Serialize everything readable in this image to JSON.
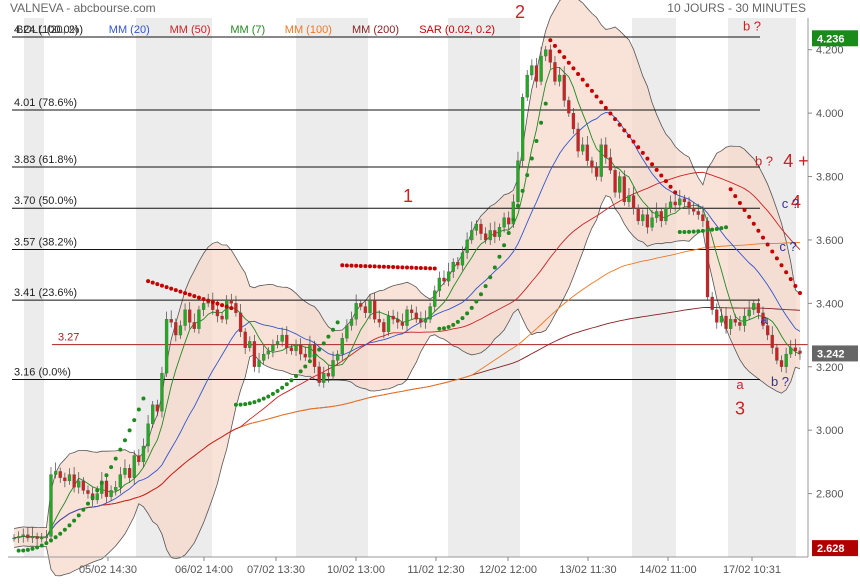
{
  "header": {
    "title": "VALNEVA - abcbourse.com",
    "period": "10 JOURS - 30 MINUTES"
  },
  "legend": [
    {
      "label": "BOLL (20, 2)",
      "color": "#333333"
    },
    {
      "label": "MM (20)",
      "color": "#3355cc"
    },
    {
      "label": "MM (50)",
      "color": "#cc2222"
    },
    {
      "label": "MM (7)",
      "color": "#228822"
    },
    {
      "label": "MM (100)",
      "color": "#ee7722"
    },
    {
      "label": "MM (200)",
      "color": "#882222"
    },
    {
      "label": "SAR (0.02, 0.2)",
      "color": "#cc0000"
    }
  ],
  "chart_data": {
    "type": "candlestick",
    "ylim": [
      2.6,
      4.3
    ],
    "y_ticks": [
      "2.800",
      "3.000",
      "3.200",
      "3.400",
      "3.600",
      "3.800",
      "4.000",
      "4.200"
    ],
    "x_ticks": [
      "05/02 14:30",
      "06/02 14:00",
      "07/02 13:30",
      "10/02 13:00",
      "11/02 12:30",
      "12/02 12:00",
      "13/02 11:30",
      "14/02 11:00",
      "17/02 10:31"
    ],
    "last_price": "3.242",
    "period_high": "4.236",
    "period_low": "2.628",
    "fibonacci": [
      {
        "label": "4.24 (100.0%)",
        "value": 4.24
      },
      {
        "label": "4.01 (78.6%)",
        "value": 4.01
      },
      {
        "label": "3.83 (61.8%)",
        "value": 3.83
      },
      {
        "label": "3.70 (50.0%)",
        "value": 3.7
      },
      {
        "label": "3.57 (38.2%)",
        "value": 3.57
      },
      {
        "label": "3.41 (23.6%)",
        "value": 3.41
      },
      {
        "label": "3.16 (0.0%)",
        "value": 3.16
      }
    ],
    "ref_line": {
      "label": "3.27",
      "value": 3.27
    },
    "waves": [
      {
        "text": "1",
        "color": "#cc2222",
        "size": "large",
        "t": 0.5,
        "v": 3.72
      },
      {
        "text": "2",
        "color": "#cc2222",
        "size": "large",
        "t": 0.64,
        "v": 4.3
      },
      {
        "text": "3",
        "color": "#cc2222",
        "size": "large",
        "t": 0.915,
        "v": 3.05
      },
      {
        "text": "4",
        "color": "#cc2222",
        "size": "large",
        "t": 0.985,
        "v": 3.7
      },
      {
        "text": "4 +",
        "color": "#cc2222",
        "size": "large",
        "t": 0.985,
        "v": 3.83
      },
      {
        "text": "a",
        "color": "#cc2222",
        "size": "small",
        "t": 0.915,
        "v": 3.13
      },
      {
        "text": "a",
        "color": "#333399",
        "size": "small",
        "t": 0.945,
        "v": 3.335
      },
      {
        "text": "b ?",
        "color": "#cc2222",
        "size": "small",
        "t": 0.93,
        "v": 4.26
      },
      {
        "text": "b ?",
        "color": "#cc2222",
        "size": "small",
        "t": 0.945,
        "v": 3.835
      },
      {
        "text": "b ?",
        "color": "#333399",
        "size": "small",
        "t": 0.965,
        "v": 3.14
      },
      {
        "text": "c ?",
        "color": "#333399",
        "size": "small",
        "t": 0.978,
        "v": 3.7
      },
      {
        "text": "c ?",
        "color": "#333399",
        "size": "small",
        "t": 0.975,
        "v": 3.565
      }
    ],
    "close": [
      2.66,
      2.665,
      2.67,
      2.66,
      2.665,
      2.658,
      2.66,
      2.665,
      2.86,
      2.87,
      2.85,
      2.84,
      2.86,
      2.82,
      2.84,
      2.81,
      2.8,
      2.78,
      2.8,
      2.84,
      2.79,
      2.81,
      2.82,
      2.86,
      2.88,
      2.85,
      2.92,
      2.9,
      2.95,
      3.02,
      3.08,
      3.06,
      3.18,
      3.35,
      3.34,
      3.3,
      3.33,
      3.38,
      3.34,
      3.32,
      3.38,
      3.4,
      3.41,
      3.38,
      3.36,
      3.35,
      3.41,
      3.4,
      3.37,
      3.31,
      3.26,
      3.28,
      3.2,
      3.22,
      3.24,
      3.25,
      3.27,
      3.28,
      3.3,
      3.26,
      3.25,
      3.27,
      3.24,
      3.23,
      3.27,
      3.2,
      3.15,
      3.18,
      3.17,
      3.22,
      3.24,
      3.29,
      3.33,
      3.35,
      3.4,
      3.39,
      3.37,
      3.41,
      3.35,
      3.34,
      3.31,
      3.36,
      3.35,
      3.34,
      3.33,
      3.38,
      3.37,
      3.35,
      3.34,
      3.35,
      3.39,
      3.44,
      3.48,
      3.47,
      3.5,
      3.53,
      3.52,
      3.56,
      3.6,
      3.63,
      3.65,
      3.62,
      3.6,
      3.63,
      3.61,
      3.64,
      3.67,
      3.65,
      3.72,
      3.85,
      4.05,
      4.12,
      4.15,
      4.1,
      4.18,
      4.2,
      4.16,
      4.1,
      4.12,
      4.04,
      4.0,
      3.95,
      3.88,
      3.9,
      3.85,
      3.83,
      3.8,
      3.9,
      3.86,
      3.82,
      3.75,
      3.8,
      3.72,
      3.74,
      3.7,
      3.66,
      3.68,
      3.64,
      3.67,
      3.69,
      3.66,
      3.7,
      3.72,
      3.71,
      3.73,
      3.72,
      3.7,
      3.69,
      3.68,
      3.66,
      3.42,
      3.38,
      3.34,
      3.36,
      3.32,
      3.35,
      3.34,
      3.33,
      3.36,
      3.38,
      3.4,
      3.37,
      3.33,
      3.3,
      3.26,
      3.22,
      3.2,
      3.24,
      3.26,
      3.25,
      3.242
    ],
    "sar_segments": [
      {
        "from": 1,
        "to": 28,
        "start": 2.62,
        "end": 3.1,
        "side": "below"
      },
      {
        "from": 29,
        "to": 47,
        "start": 3.47,
        "end": 3.385,
        "side": "above"
      },
      {
        "from": 48,
        "to": 70,
        "start": 3.08,
        "end": 3.34,
        "side": "below"
      },
      {
        "from": 71,
        "to": 91,
        "start": 3.52,
        "end": 3.51,
        "side": "above"
      },
      {
        "from": 92,
        "to": 115,
        "start": 3.32,
        "end": 4.03,
        "side": "below"
      },
      {
        "from": 116,
        "to": 143,
        "start": 4.23,
        "end": 3.75,
        "side": "above"
      },
      {
        "from": 144,
        "to": 154,
        "start": 3.625,
        "end": 3.64,
        "side": "below"
      },
      {
        "from": 155,
        "to": 177,
        "start": 3.76,
        "end": 3.28,
        "side": "above"
      }
    ]
  }
}
